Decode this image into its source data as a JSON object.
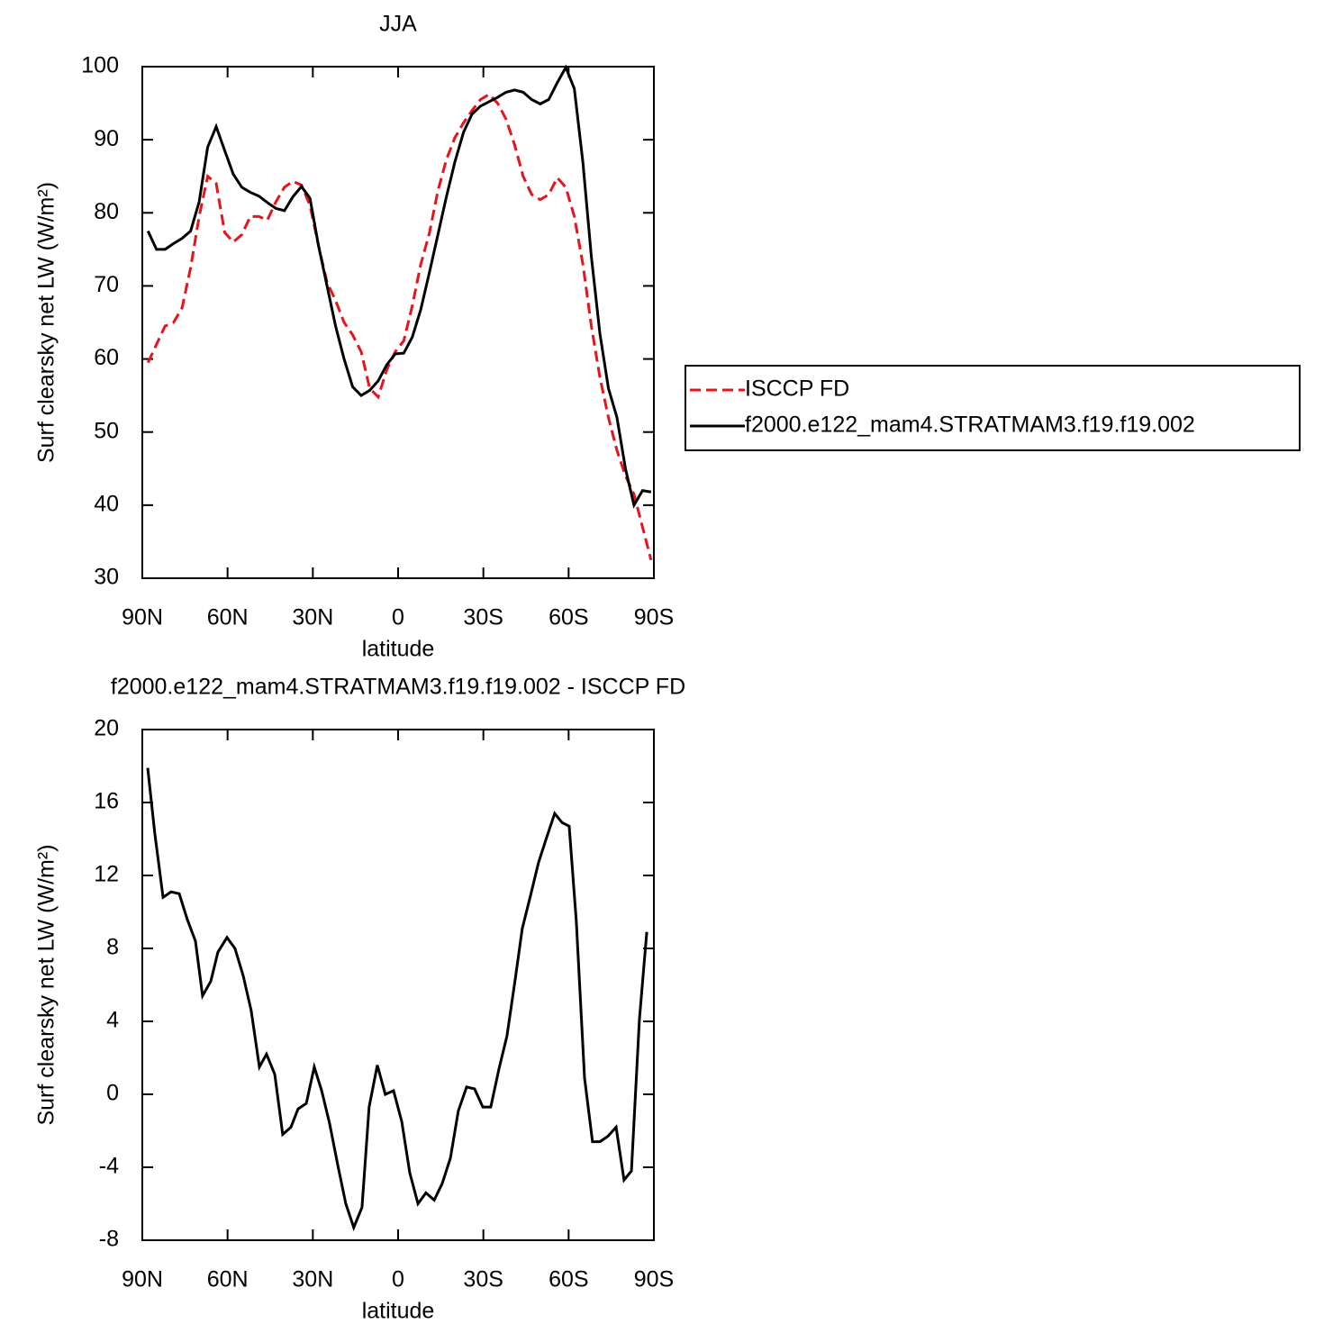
{
  "chart_data": [
    {
      "type": "line",
      "title": "JJA",
      "xlabel": "latitude",
      "ylabel": "Surf clearsky net LW (W/m²)",
      "x": [
        88,
        85,
        82,
        79,
        76,
        73,
        70,
        67,
        64,
        61,
        58,
        55,
        52,
        49,
        46,
        43,
        40,
        37,
        34,
        31,
        28,
        25,
        22,
        19,
        16,
        13,
        10,
        7,
        4,
        1,
        -2,
        -5,
        -8,
        -11,
        -14,
        -17,
        -20,
        -23,
        -26,
        -29,
        -32,
        -35,
        -38,
        -41,
        -44,
        -47,
        -50,
        -53,
        -56,
        -59,
        -62,
        -65,
        -68,
        -71,
        -74,
        -77,
        -80,
        -83,
        -86,
        -89
      ],
      "series": [
        {
          "name": "ISCCP FD",
          "color": "#e8141c",
          "dashed": true,
          "values": [
            59.5,
            62,
            64.5,
            65,
            67,
            72.5,
            79.5,
            85,
            84,
            77.3,
            76,
            77,
            79.5,
            79.5,
            79,
            81.5,
            83.5,
            84.3,
            83.8,
            81,
            75.5,
            70.5,
            68,
            65,
            63.3,
            61,
            56,
            54.8,
            58.5,
            61,
            62.5,
            67.3,
            73,
            77.2,
            83,
            87.3,
            90.3,
            92.3,
            94,
            95.5,
            96.2,
            95,
            92.8,
            89.3,
            85,
            82.5,
            81.8,
            82.5,
            84.8,
            83.5,
            79.5,
            73,
            64.5,
            57.5,
            52,
            47.5,
            44,
            41.5,
            37,
            32.5
          ]
        },
        {
          "name": "f2000.e122_mam4.STRATMAM3.f19.f19.002",
          "color": "#000000",
          "dashed": false,
          "values": [
            77.5,
            75,
            75,
            75.8,
            76.5,
            77.5,
            81.5,
            89,
            91.8,
            88.5,
            85.3,
            83.5,
            82.8,
            82.3,
            81.4,
            80.6,
            80.3,
            82.2,
            83.6,
            82,
            75.5,
            70,
            64.5,
            60,
            56.2,
            55,
            55.7,
            57,
            59.2,
            60.7,
            60.8,
            63,
            66.8,
            71.8,
            77,
            82.2,
            87,
            91,
            93.5,
            94.6,
            95.2,
            95.8,
            96.5,
            96.8,
            96.5,
            95.5,
            94.9,
            95.5,
            97.8,
            99.9,
            97,
            87,
            74,
            63.5,
            56,
            52,
            45,
            40,
            42,
            41.8
          ]
        }
      ],
      "xlim": [
        90,
        -90
      ],
      "ylim": [
        30,
        100
      ],
      "xticks": [
        {
          "value": 90,
          "label": "90N"
        },
        {
          "value": 60,
          "label": "60N"
        },
        {
          "value": 30,
          "label": "30N"
        },
        0,
        {
          "value": -30,
          "label": "30S"
        },
        {
          "value": -60,
          "label": "60S"
        },
        {
          "value": -90,
          "label": "90S"
        }
      ],
      "yticks": [
        30,
        40,
        50,
        60,
        70,
        80,
        90,
        100
      ],
      "legend": "right"
    },
    {
      "type": "line",
      "title": "f2000.e122_mam4.STRATMAM3.f19.f19.002 - ISCCP FD",
      "xlabel": "latitude",
      "ylabel": "Surf clearsky net LW (W/m²)",
      "x": [
        88.1,
        85.6,
        82.7,
        79.9,
        77,
        74.2,
        71.3,
        68.8,
        65.9,
        63.4,
        60.2,
        57.4,
        54.5,
        51.7,
        48.8,
        46.3,
        43.4,
        40.6,
        37.7,
        35.2,
        32.3,
        29.5,
        26.9,
        24.1,
        21.2,
        18.4,
        15.6,
        12.7,
        10.2,
        7.3,
        4.5,
        1.6,
        -1.3,
        -4.1,
        -7,
        -9.8,
        -12.7,
        -15.5,
        -18.4,
        -21.2,
        -24.1,
        -26.9,
        -29.8,
        -32.6,
        -35.5,
        -38.3,
        -41.2,
        -43.7,
        -46.6,
        -49.4,
        -52.3,
        -55.1,
        -57.7,
        -60.2,
        -62.7,
        -65.6,
        -68.4,
        -71,
        -73.8,
        -76.7,
        -79.5,
        -82.1,
        -84.9,
        -87.5
      ],
      "series": [
        {
          "color": "#000000",
          "dashed": false,
          "values": [
            17.9,
            14.3,
            10.8,
            11.1,
            11,
            9.6,
            8.4,
            5.4,
            6.2,
            7.8,
            8.6,
            8,
            6.5,
            4.6,
            1.5,
            2.2,
            1.1,
            -2.2,
            -1.8,
            -0.8,
            -0.5,
            1.5,
            0.2,
            -1.6,
            -3.9,
            -6,
            -7.3,
            -6.2,
            -0.7,
            1.6,
            0,
            0.2,
            -1.5,
            -4.3,
            -6,
            -5.4,
            -5.8,
            -4.9,
            -3.5,
            -0.9,
            0.4,
            0.3,
            -0.7,
            -0.7,
            1.4,
            3.2,
            6.3,
            9.1,
            10.9,
            12.7,
            14.1,
            15.4,
            14.9,
            14.7,
            9.5,
            0.9,
            -2.6,
            -2.6,
            -2.3,
            -1.8,
            -4.7,
            -4.2,
            4.1,
            8.9
          ]
        }
      ],
      "xlim": [
        90,
        -90
      ],
      "ylim": [
        -8,
        20
      ],
      "xticks": [
        {
          "value": 90,
          "label": "90N"
        },
        {
          "value": 60,
          "label": "60N"
        },
        {
          "value": 30,
          "label": "30N"
        },
        0,
        {
          "value": -30,
          "label": "30S"
        },
        {
          "value": -60,
          "label": "60S"
        },
        {
          "value": -90,
          "label": "90S"
        }
      ],
      "yticks": [
        -8,
        -4,
        0,
        4,
        8,
        12,
        16,
        20
      ]
    }
  ]
}
